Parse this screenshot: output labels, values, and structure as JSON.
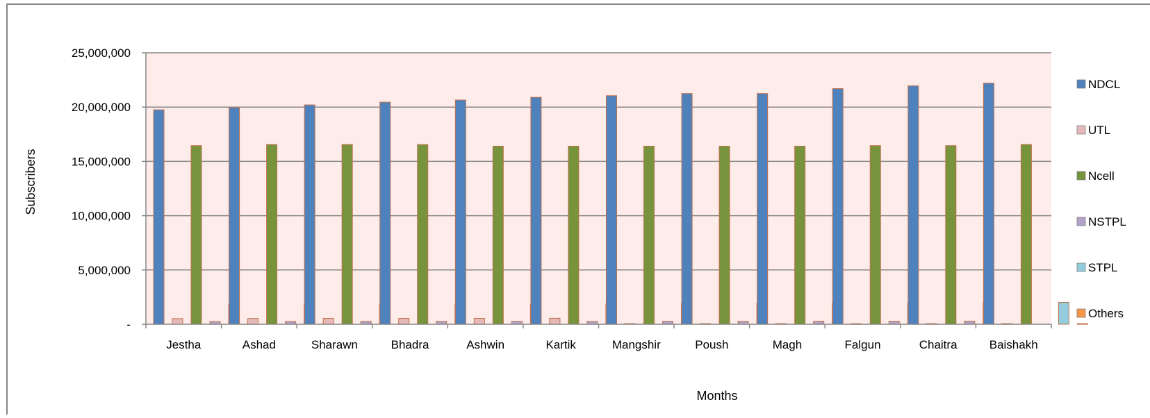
{
  "chart_data": {
    "type": "bar",
    "title": "",
    "xlabel": "Months",
    "ylabel": "Subscribers",
    "ylim": [
      0,
      25000000
    ],
    "yticks": [
      0,
      5000000,
      10000000,
      15000000,
      20000000,
      25000000
    ],
    "ytick_labels": [
      "-",
      "5,000,000",
      "10,000,000",
      "15,000,000",
      "20,000,000",
      "25,000,000"
    ],
    "grid": true,
    "legend_position": "right",
    "plot_background": "#fdecea",
    "categories": [
      "Jestha",
      "Ashad",
      "Sharawn",
      "Bhadra",
      "Ashwin",
      "Kartik",
      "Mangshir",
      "Poush",
      "Magh",
      "Falgun",
      "Chaitra",
      "Baishakh"
    ],
    "series": [
      {
        "name": "NDCL",
        "color": "#4f81bd",
        "values": [
          19750000,
          19950000,
          20200000,
          20450000,
          20650000,
          20900000,
          21050000,
          21250000,
          21250000,
          21700000,
          21950000,
          22200000
        ]
      },
      {
        "name": "UTL",
        "color": "#e6b9b8",
        "values": [
          520000,
          530000,
          540000,
          540000,
          545000,
          550000,
          0,
          0,
          0,
          0,
          0,
          0
        ]
      },
      {
        "name": "Ncell",
        "color": "#77933c",
        "values": [
          16450000,
          16550000,
          16550000,
          16550000,
          16400000,
          16400000,
          16400000,
          16400000,
          16400000,
          16450000,
          16450000,
          16550000
        ]
      },
      {
        "name": "NSTPL",
        "color": "#b3a2c7",
        "values": [
          250000,
          260000,
          270000,
          270000,
          270000,
          270000,
          280000,
          280000,
          280000,
          280000,
          290000,
          0
        ]
      },
      {
        "name": "STPL",
        "color": "#93cddd",
        "values": [
          1850000,
          1860000,
          1870000,
          1880000,
          1880000,
          1890000,
          1920000,
          1940000,
          1950000,
          1960000,
          2000000,
          2020000
        ]
      },
      {
        "name": "Others",
        "color": "#f79646",
        "values": [
          60000,
          60000,
          60000,
          60000,
          60000,
          60000,
          60000,
          60000,
          60000,
          60000,
          60000,
          60000
        ]
      }
    ]
  }
}
